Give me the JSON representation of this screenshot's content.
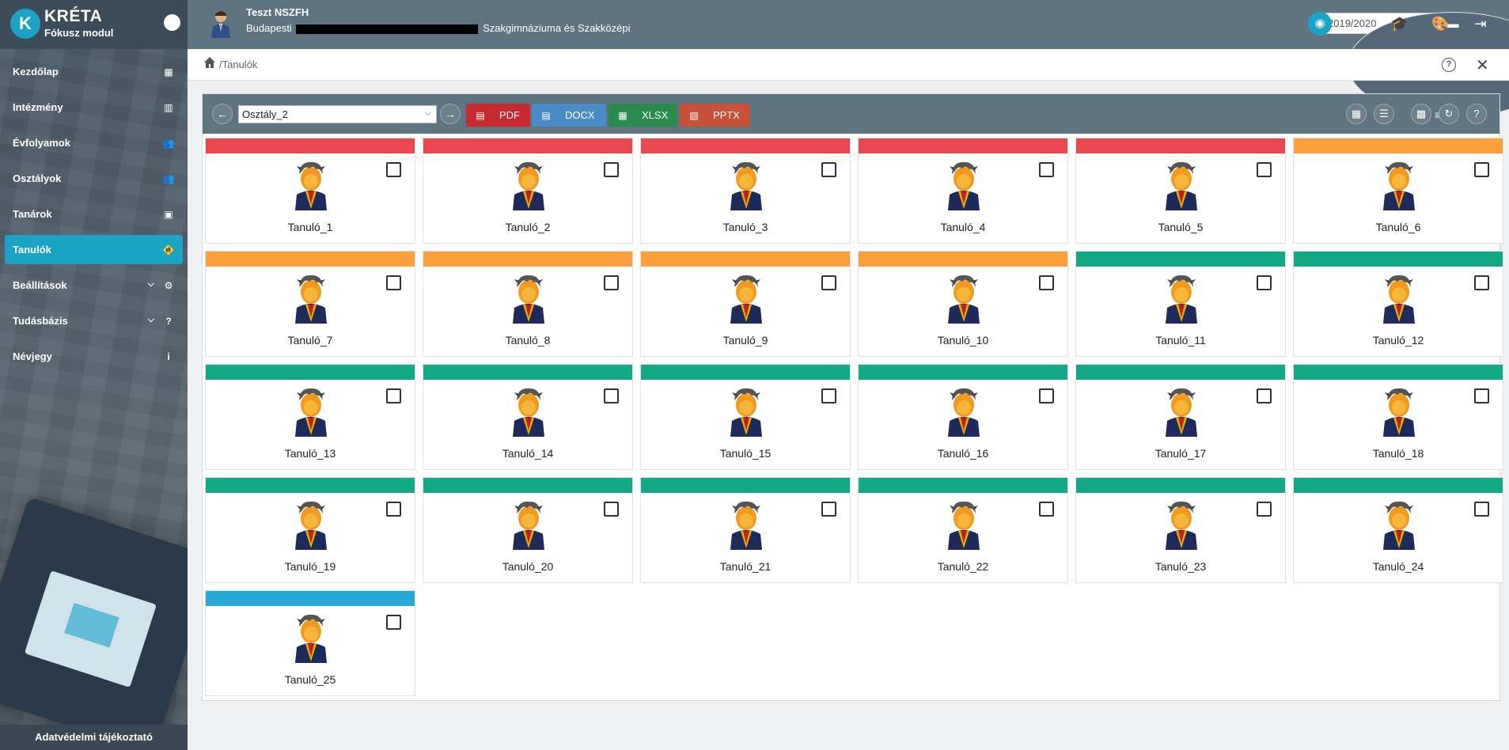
{
  "brand": {
    "title": "KRÉTA",
    "subtitle": "Fókusz modul",
    "logo_letter": "K"
  },
  "sidebar": {
    "items": [
      {
        "label": "Kezdőlap",
        "icon": "dashboard-icon",
        "glyph": "▦"
      },
      {
        "label": "Intézmény",
        "icon": "building-icon",
        "glyph": "▥"
      },
      {
        "label": "Évfolyamok",
        "icon": "group-icon",
        "glyph": "👥"
      },
      {
        "label": "Osztályok",
        "icon": "group-icon",
        "glyph": "👥"
      },
      {
        "label": "Tanárok",
        "icon": "contact-card-icon",
        "glyph": "▣"
      },
      {
        "label": "Tanulók",
        "icon": "students-icon",
        "glyph": "🚸"
      },
      {
        "label": "Beállítások",
        "icon": "gear-icon",
        "glyph": "⚙"
      },
      {
        "label": "Tudásbázis",
        "icon": "help-icon",
        "glyph": "?"
      },
      {
        "label": "Névjegy",
        "icon": "info-icon",
        "glyph": "i"
      }
    ],
    "active_index": 5,
    "footer_link": "Adatvédelmi tájékoztató"
  },
  "header": {
    "user_name": "Teszt NSZFH",
    "school_prefix": "Budapesti",
    "school_suffix": "Szakgimnáziuma és Szakközépi",
    "year": "2019/2020"
  },
  "breadcrumb": {
    "path": "/Tanulók"
  },
  "toolbar": {
    "class_select": "Osztály_2",
    "export_buttons": [
      {
        "label": "PDF",
        "color": "#c6292e"
      },
      {
        "label": "DOCX",
        "color": "#4b8bc7"
      },
      {
        "label": "XLSX",
        "color": "#2b8a4d"
      },
      {
        "label": "PPTX",
        "color": "#c9503a"
      }
    ]
  },
  "colors": {
    "red": "#e8484e",
    "orange": "#fb9e3c",
    "green": "#13a986",
    "blue": "#26a9d5",
    "accent": "#1ba3c6"
  },
  "students": [
    {
      "name": "Tanuló_1",
      "status": "red"
    },
    {
      "name": "Tanuló_2",
      "status": "red"
    },
    {
      "name": "Tanuló_3",
      "status": "red"
    },
    {
      "name": "Tanuló_4",
      "status": "red"
    },
    {
      "name": "Tanuló_5",
      "status": "red"
    },
    {
      "name": "Tanuló_6",
      "status": "orange"
    },
    {
      "name": "Tanuló_7",
      "status": "orange"
    },
    {
      "name": "Tanuló_8",
      "status": "orange"
    },
    {
      "name": "Tanuló_9",
      "status": "orange"
    },
    {
      "name": "Tanuló_10",
      "status": "orange"
    },
    {
      "name": "Tanuló_11",
      "status": "green"
    },
    {
      "name": "Tanuló_12",
      "status": "green"
    },
    {
      "name": "Tanuló_13",
      "status": "green"
    },
    {
      "name": "Tanuló_14",
      "status": "green"
    },
    {
      "name": "Tanuló_15",
      "status": "green"
    },
    {
      "name": "Tanuló_16",
      "status": "green"
    },
    {
      "name": "Tanuló_17",
      "status": "green"
    },
    {
      "name": "Tanuló_18",
      "status": "green"
    },
    {
      "name": "Tanuló_19",
      "status": "green"
    },
    {
      "name": "Tanuló_20",
      "status": "green"
    },
    {
      "name": "Tanuló_21",
      "status": "green"
    },
    {
      "name": "Tanuló_22",
      "status": "green"
    },
    {
      "name": "Tanuló_23",
      "status": "green"
    },
    {
      "name": "Tanuló_24",
      "status": "green"
    },
    {
      "name": "Tanuló_25",
      "status": "blue"
    }
  ]
}
